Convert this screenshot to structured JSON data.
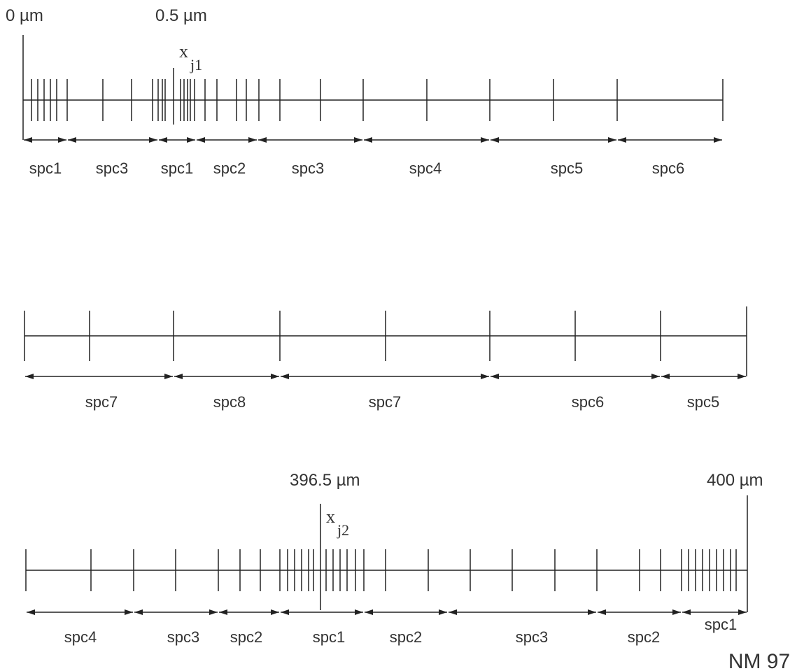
{
  "top_line": {
    "start_label": "0 µm",
    "position_label": "0.5 µm",
    "node": {
      "symbol": "x",
      "subscript": "j1"
    },
    "segments": [
      "spc1",
      "spc3",
      "spc1",
      "spc2",
      "spc3",
      "spc4",
      "spc5",
      "spc6"
    ]
  },
  "middle_line": {
    "segments": [
      "spc7",
      "spc8",
      "spc7",
      "spc6",
      "spc5"
    ]
  },
  "bottom_line": {
    "position_label": "396.5 µm",
    "end_label": "400 µm",
    "node": {
      "symbol": "x",
      "subscript": "j2"
    },
    "segments": [
      "spc4",
      "spc3",
      "spc2",
      "spc1",
      "spc2",
      "spc3",
      "spc2",
      "spc1"
    ]
  },
  "footer": "NM 97"
}
